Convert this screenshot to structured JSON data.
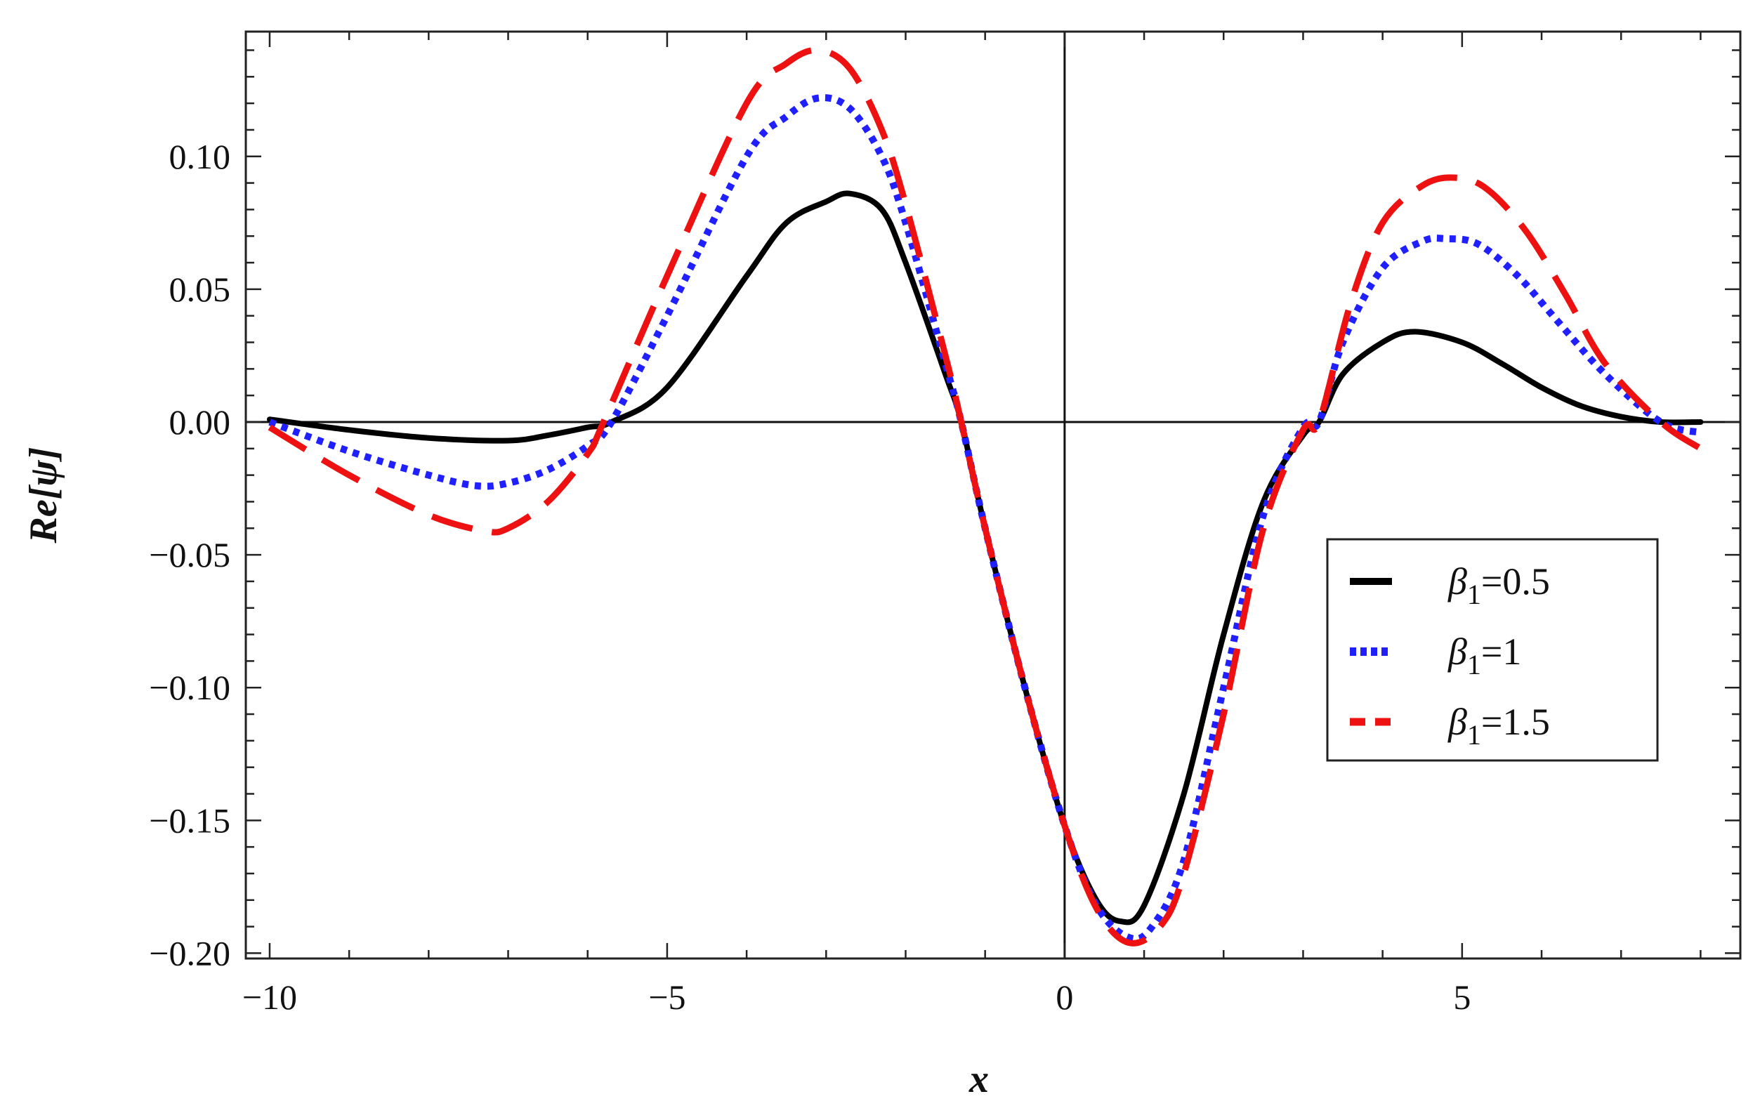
{
  "chart_data": {
    "type": "line",
    "xlabel": "x",
    "ylabel": "Re[ψ]",
    "xlim": [
      -10.3,
      8.5
    ],
    "ylim": [
      -0.202,
      0.147
    ],
    "x_ticks": [
      -10,
      -5,
      0,
      5
    ],
    "x_tick_labels": [
      "−10",
      "−5",
      "0",
      "5"
    ],
    "y_ticks": [
      0.1,
      0.05,
      0.0,
      -0.05,
      -0.1,
      -0.15,
      -0.2
    ],
    "y_tick_labels": [
      "0.10",
      "0.05",
      "0.00",
      "−0.05",
      "−0.10",
      "−0.15",
      "−0.20"
    ],
    "grid": false,
    "frame": true,
    "axes_through_origin": true,
    "legend_position": "right-middle",
    "series": [
      {
        "name": "β1=0.5",
        "legend_symbol": "β",
        "legend_subscript": "1",
        "legend_value": "=0.5",
        "color": "#000000",
        "style": "solid",
        "x": [
          -10,
          -9,
          -8,
          -7,
          -6.5,
          -6,
          -5.7,
          -5,
          -4,
          -3.5,
          -3,
          -2.7,
          -2.3,
          -2,
          -1.5,
          -1.3,
          -1,
          -0.5,
          0,
          0.4,
          0.7,
          1,
          1.5,
          2,
          2.5,
          3,
          3.2,
          3.5,
          4,
          4.4,
          5,
          5.5,
          6,
          6.5,
          7,
          7.5,
          8
        ],
        "y": [
          0.001,
          -0.003,
          -0.006,
          -0.007,
          -0.005,
          -0.002,
          0.0,
          0.013,
          0.055,
          0.075,
          0.083,
          0.086,
          0.08,
          0.06,
          0.018,
          0.0,
          -0.04,
          -0.1,
          -0.152,
          -0.18,
          -0.188,
          -0.182,
          -0.14,
          -0.08,
          -0.03,
          -0.005,
          0.0,
          0.018,
          0.03,
          0.034,
          0.03,
          0.022,
          0.013,
          0.006,
          0.002,
          0.0,
          0.0
        ]
      },
      {
        "name": "β1=1",
        "legend_symbol": "β",
        "legend_subscript": "1",
        "legend_value": "=1",
        "color": "#1f1fff",
        "style": "dotted",
        "x": [
          -10,
          -9,
          -8,
          -7.4,
          -7,
          -6.5,
          -6,
          -5.7,
          -5,
          -4,
          -3.5,
          -3.1,
          -2.7,
          -2.3,
          -2,
          -1.5,
          -1.3,
          -1,
          -0.5,
          0,
          0.4,
          0.8,
          1.1,
          1.5,
          2,
          2.5,
          3,
          3.2,
          3.5,
          4,
          4.5,
          4.8,
          5.2,
          5.7,
          6.2,
          6.8,
          7.5,
          8
        ],
        "y": [
          0.0,
          -0.011,
          -0.02,
          -0.024,
          -0.023,
          -0.018,
          -0.009,
          0.0,
          0.04,
          0.1,
          0.115,
          0.122,
          0.118,
          0.1,
          0.075,
          0.022,
          0.0,
          -0.04,
          -0.1,
          -0.152,
          -0.182,
          -0.194,
          -0.19,
          -0.165,
          -0.1,
          -0.035,
          -0.002,
          0.0,
          0.03,
          0.058,
          0.068,
          0.069,
          0.067,
          0.055,
          0.038,
          0.018,
          0.0,
          -0.004
        ]
      },
      {
        "name": "β1=1.5",
        "legend_symbol": "β",
        "legend_subscript": "1",
        "legend_value": "=1.5",
        "color": "#ee1111",
        "style": "dashed",
        "x": [
          -10,
          -9,
          -8,
          -7.3,
          -7,
          -6.5,
          -6,
          -5.8,
          -5,
          -4,
          -3.5,
          -3.1,
          -2.7,
          -2.3,
          -2,
          -1.5,
          -1.3,
          -1,
          -0.5,
          0,
          0.4,
          0.8,
          1.2,
          1.5,
          2,
          2.5,
          3,
          3.2,
          3.6,
          4,
          4.5,
          4.9,
          5.3,
          5.8,
          6.3,
          6.8,
          7.5,
          8
        ],
        "y": [
          -0.002,
          -0.02,
          -0.035,
          -0.041,
          -0.04,
          -0.03,
          -0.012,
          0.0,
          0.055,
          0.12,
          0.135,
          0.14,
          0.133,
          0.11,
          0.082,
          0.025,
          0.0,
          -0.04,
          -0.1,
          -0.152,
          -0.183,
          -0.196,
          -0.19,
          -0.17,
          -0.11,
          -0.04,
          -0.003,
          0.0,
          0.045,
          0.075,
          0.089,
          0.092,
          0.088,
          0.072,
          0.048,
          0.022,
          0.0,
          -0.01
        ]
      }
    ]
  }
}
